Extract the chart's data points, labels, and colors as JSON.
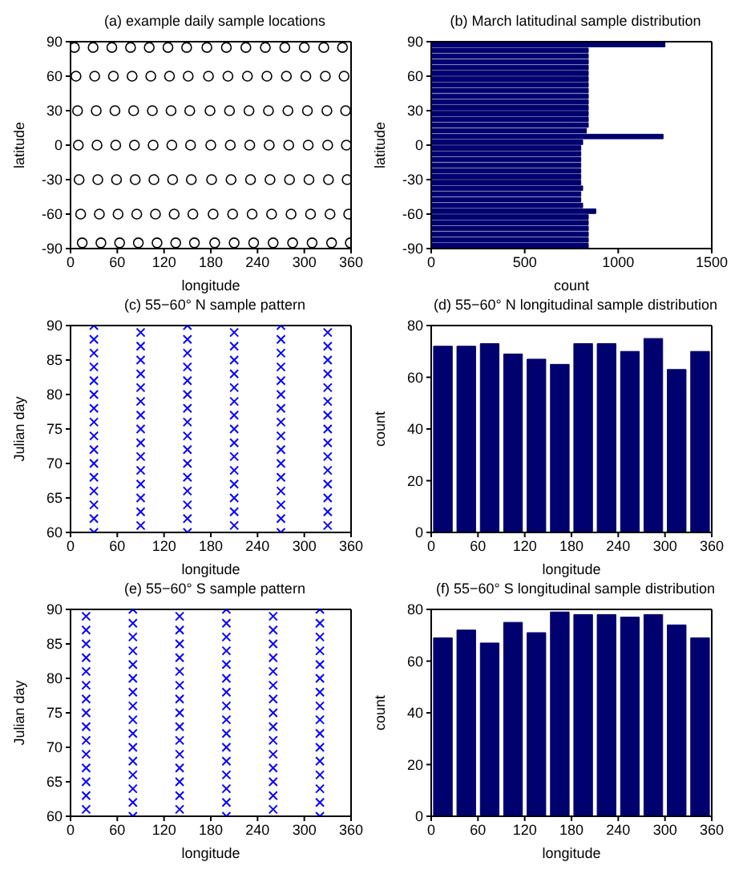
{
  "chart_data": [
    {
      "type": "scatter",
      "title": "(a) example daily sample locations",
      "xlabel": "longitude",
      "ylabel": "latitude",
      "xlim": [
        0,
        360
      ],
      "xticks": [
        0,
        60,
        120,
        180,
        240,
        300,
        360
      ],
      "ylim": [
        -90,
        90
      ],
      "yticks": [
        -90,
        -60,
        -30,
        0,
        30,
        60,
        90
      ],
      "marker": "circle",
      "series": [
        {
          "color": "#000000",
          "x": [
            15,
            13,
            11,
            10,
            9,
            7,
            5,
            39,
            37,
            35,
            34,
            33,
            31,
            29,
            63,
            61,
            59,
            58,
            57,
            55,
            53,
            87,
            85,
            83,
            82,
            81,
            79,
            77,
            111,
            109,
            107,
            106,
            105,
            103,
            101,
            135,
            133,
            131,
            130,
            129,
            127,
            125,
            159,
            157,
            155,
            154,
            153,
            151,
            149,
            185,
            183,
            181,
            180,
            179,
            177,
            175,
            210,
            208,
            206,
            205,
            204,
            202,
            200,
            235,
            233,
            231,
            230,
            229,
            227,
            225,
            260,
            258,
            256,
            255,
            254,
            252,
            250,
            285,
            283,
            281,
            280,
            279,
            277,
            275,
            310,
            308,
            306,
            305,
            304,
            302,
            300,
            335,
            333,
            331,
            330,
            329,
            327,
            325,
            359,
            357,
            355,
            354,
            353,
            351,
            349
          ],
          "values": [
            -85,
            -60,
            -30,
            0,
            30,
            60,
            85,
            -85,
            -60,
            -30,
            0,
            30,
            60,
            85,
            -85,
            -60,
            -30,
            0,
            30,
            60,
            85,
            -85,
            -60,
            -30,
            0,
            30,
            60,
            85,
            -85,
            -60,
            -30,
            0,
            30,
            60,
            85,
            -85,
            -60,
            -30,
            0,
            30,
            60,
            85,
            -85,
            -60,
            -30,
            0,
            30,
            60,
            85,
            -85,
            -60,
            -30,
            0,
            30,
            60,
            85,
            -85,
            -60,
            -30,
            0,
            30,
            60,
            85,
            -85,
            -60,
            -30,
            0,
            30,
            60,
            85,
            -85,
            -60,
            -30,
            0,
            30,
            60,
            85,
            -85,
            -60,
            -30,
            0,
            30,
            60,
            85,
            -85,
            -60,
            -30,
            0,
            30,
            60,
            85,
            -85,
            -60,
            -30,
            0,
            30,
            60,
            85,
            -85,
            -60,
            -30,
            0,
            30,
            60,
            85
          ]
        }
      ]
    },
    {
      "type": "histogram",
      "title": "(b) March latitudinal sample distribution",
      "xlabel": "count",
      "ylabel": "latitude",
      "orientation": "horizontal",
      "color": "#00006e",
      "xlim": [
        0,
        1500
      ],
      "xticks": [
        0,
        500,
        1000,
        1500
      ],
      "ylim": [
        -90,
        90
      ],
      "yticks": [
        -90,
        -60,
        -30,
        0,
        30,
        60,
        90
      ],
      "bins": [
        -90,
        -85,
        -80,
        -75,
        -70,
        -65,
        -60,
        -55,
        -50,
        -45,
        -40,
        -35,
        -30,
        -25,
        -20,
        -15,
        -10,
        -5,
        0,
        5,
        10,
        15,
        20,
        25,
        30,
        35,
        40,
        45,
        50,
        55,
        60,
        65,
        70,
        75,
        80,
        85,
        90
      ],
      "values": [
        840,
        840,
        840,
        840,
        840,
        840,
        880,
        810,
        800,
        800,
        810,
        800,
        800,
        800,
        800,
        800,
        800,
        800,
        810,
        1240,
        830,
        840,
        840,
        840,
        840,
        840,
        840,
        840,
        840,
        840,
        840,
        840,
        840,
        840,
        840,
        1250
      ]
    },
    {
      "type": "scatter",
      "title": "(c) 55−60° N sample pattern",
      "xlabel": "longitude",
      "ylabel": "Julian day",
      "xlim": [
        0,
        360
      ],
      "xticks": [
        0,
        60,
        120,
        180,
        240,
        300,
        360
      ],
      "ylim": [
        60,
        90
      ],
      "yticks": [
        60,
        65,
        70,
        75,
        80,
        85,
        90
      ],
      "marker": "cross",
      "series": [
        {
          "color": "#0000ff",
          "x": [
            30,
            30,
            30,
            30,
            30,
            30,
            30,
            30,
            30,
            30,
            30,
            30,
            30,
            30,
            30,
            30,
            90,
            90,
            90,
            90,
            90,
            90,
            90,
            90,
            90,
            90,
            90,
            90,
            90,
            90,
            90,
            150,
            150,
            150,
            150,
            150,
            150,
            150,
            150,
            150,
            150,
            150,
            150,
            150,
            150,
            150,
            150,
            210,
            210,
            210,
            210,
            210,
            210,
            210,
            210,
            210,
            210,
            210,
            210,
            210,
            210,
            210,
            270,
            270,
            270,
            270,
            270,
            270,
            270,
            270,
            270,
            270,
            270,
            270,
            270,
            270,
            270,
            270,
            330,
            330,
            330,
            330,
            330,
            330,
            330,
            330,
            330,
            330,
            330,
            330,
            330,
            330,
            330
          ],
          "values": [
            60,
            62,
            64,
            66,
            68,
            70,
            72,
            74,
            76,
            78,
            80,
            82,
            84,
            86,
            88,
            90,
            61,
            63,
            65,
            67,
            69,
            71,
            73,
            75,
            77,
            79,
            81,
            83,
            85,
            87,
            89,
            60,
            62,
            64,
            66,
            68,
            70,
            72,
            74,
            76,
            78,
            80,
            82,
            84,
            86,
            88,
            90,
            61,
            63,
            65,
            67,
            69,
            71,
            73,
            75,
            77,
            79,
            81,
            83,
            85,
            87,
            89,
            60,
            62,
            64,
            66,
            68,
            70,
            72,
            74,
            76,
            78,
            80,
            82,
            84,
            86,
            88,
            90,
            61,
            63,
            65,
            67,
            69,
            71,
            73,
            75,
            77,
            79,
            81,
            83,
            85,
            87,
            89
          ]
        }
      ]
    },
    {
      "type": "histogram",
      "title": "(d) 55−60° N longitudinal sample distribution",
      "xlabel": "longitude",
      "ylabel": "count",
      "color": "#00006e",
      "xlim": [
        0,
        360
      ],
      "xticks": [
        0,
        60,
        120,
        180,
        240,
        300,
        360
      ],
      "ylim": [
        0,
        80
      ],
      "yticks": [
        0,
        20,
        40,
        60,
        80
      ],
      "bins": [
        0,
        30,
        60,
        90,
        120,
        150,
        180,
        210,
        240,
        270,
        300,
        330,
        360
      ],
      "values": [
        72,
        72,
        73,
        69,
        67,
        65,
        73,
        73,
        70,
        75,
        63,
        70
      ]
    },
    {
      "type": "scatter",
      "title": "(e) 55−60° S sample pattern",
      "xlabel": "longitude",
      "ylabel": "Julian day",
      "xlim": [
        0,
        360
      ],
      "xticks": [
        0,
        60,
        120,
        180,
        240,
        300,
        360
      ],
      "ylim": [
        60,
        90
      ],
      "yticks": [
        60,
        65,
        70,
        75,
        80,
        85,
        90
      ],
      "marker": "cross",
      "series": [
        {
          "color": "#0000ff",
          "x": [
            20,
            20,
            20,
            20,
            20,
            20,
            20,
            20,
            20,
            20,
            20,
            20,
            20,
            20,
            20,
            80,
            80,
            80,
            80,
            80,
            80,
            80,
            80,
            80,
            80,
            80,
            80,
            80,
            80,
            80,
            80,
            140,
            140,
            140,
            140,
            140,
            140,
            140,
            140,
            140,
            140,
            140,
            140,
            140,
            140,
            140,
            200,
            200,
            200,
            200,
            200,
            200,
            200,
            200,
            200,
            200,
            200,
            200,
            200,
            200,
            200,
            200,
            260,
            260,
            260,
            260,
            260,
            260,
            260,
            260,
            260,
            260,
            260,
            260,
            260,
            260,
            260,
            320,
            320,
            320,
            320,
            320,
            320,
            320,
            320,
            320,
            320,
            320,
            320,
            320,
            320,
            320,
            320
          ],
          "values": [
            61,
            63,
            65,
            67,
            69,
            71,
            73,
            75,
            77,
            79,
            81,
            83,
            85,
            87,
            89,
            60,
            62,
            64,
            66,
            68,
            70,
            72,
            74,
            76,
            78,
            80,
            82,
            84,
            86,
            88,
            90,
            61,
            63,
            65,
            67,
            69,
            71,
            73,
            75,
            77,
            79,
            81,
            83,
            85,
            87,
            89,
            60,
            62,
            64,
            66,
            68,
            70,
            72,
            74,
            76,
            78,
            80,
            82,
            84,
            86,
            88,
            90,
            61,
            63,
            65,
            67,
            69,
            71,
            73,
            75,
            77,
            79,
            81,
            83,
            85,
            87,
            89,
            60,
            62,
            64,
            66,
            68,
            70,
            72,
            74,
            76,
            78,
            80,
            82,
            84,
            86,
            88,
            90
          ]
        }
      ]
    },
    {
      "type": "histogram",
      "title": "(f) 55−60° S longitudinal sample distribution",
      "xlabel": "longitude",
      "ylabel": "count",
      "color": "#00006e",
      "xlim": [
        0,
        360
      ],
      "xticks": [
        0,
        60,
        120,
        180,
        240,
        300,
        360
      ],
      "ylim": [
        0,
        80
      ],
      "yticks": [
        0,
        20,
        40,
        60,
        80
      ],
      "bins": [
        0,
        30,
        60,
        90,
        120,
        150,
        180,
        210,
        240,
        270,
        300,
        330,
        360
      ],
      "values": [
        69,
        72,
        67,
        75,
        71,
        79,
        78,
        78,
        77,
        78,
        74,
        69
      ]
    }
  ]
}
